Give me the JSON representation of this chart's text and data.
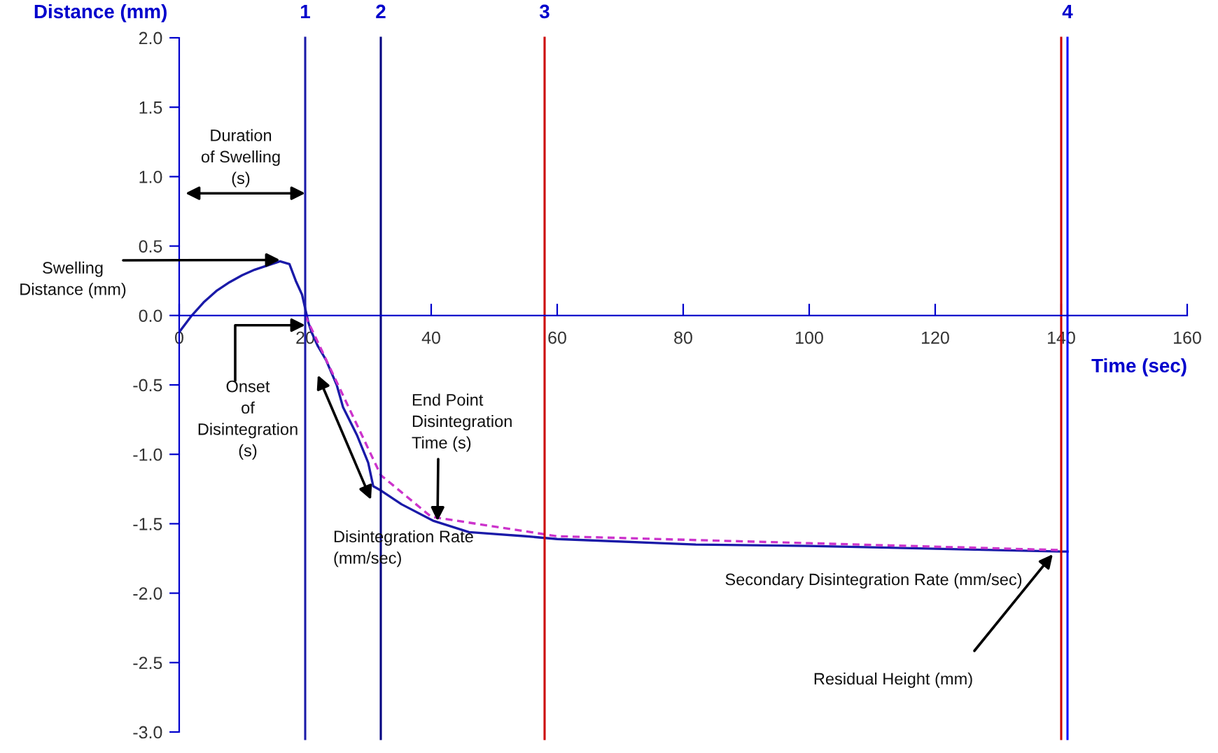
{
  "chart_data": {
    "type": "line",
    "xlabel": "Time (sec)",
    "ylabel": "Distance (mm)",
    "xlim": [
      0,
      160
    ],
    "ylim": [
      -3.0,
      2.0
    ],
    "xticks": [
      0,
      20,
      40,
      60,
      80,
      100,
      120,
      140,
      160
    ],
    "yticks": [
      {
        "value": -3.0,
        "label": "-3.0"
      },
      {
        "value": -2.5,
        "label": "-2.5"
      },
      {
        "value": -2.0,
        "label": "-2.0"
      },
      {
        "value": -1.5,
        "label": "-1.5"
      },
      {
        "value": -1.0,
        "label": "-1.0"
      },
      {
        "value": -0.5,
        "label": "-0.5"
      },
      {
        "value": 0.0,
        "label": "0.0"
      },
      {
        "value": 0.5,
        "label": "0.5"
      },
      {
        "value": 1.0,
        "label": "1.0"
      },
      {
        "value": 1.5,
        "label": "1.5"
      },
      {
        "value": 2.0,
        "label": "2.0"
      }
    ],
    "grid": false,
    "legend": false,
    "series": [
      {
        "color": "#1a1aa8",
        "line_style": "solid",
        "x": [
          0,
          2,
          4,
          6,
          8,
          10,
          12,
          14,
          16,
          17.5,
          18.5,
          19.5,
          20,
          20.5,
          21,
          22,
          23.3,
          25,
          26,
          28.2,
          30,
          30.8,
          32,
          35.3,
          40.4,
          46,
          55,
          60,
          82,
          100,
          120,
          140,
          141
        ],
        "values": [
          -0.12,
          0.0,
          0.1,
          0.18,
          0.24,
          0.29,
          0.33,
          0.36,
          0.39,
          0.37,
          0.25,
          0.15,
          0.05,
          -0.05,
          -0.12,
          -0.22,
          -0.32,
          -0.5,
          -0.66,
          -0.86,
          -1.06,
          -1.23,
          -1.26,
          -1.36,
          -1.48,
          -1.56,
          -1.59,
          -1.61,
          -1.65,
          -1.66,
          -1.68,
          -1.7,
          -1.7
        ]
      },
      {
        "color": "#cc33cc",
        "line_style": "dashed",
        "x": [
          20,
          32,
          40,
          60,
          100,
          140
        ],
        "values": [
          0.0,
          -1.15,
          -1.45,
          -1.59,
          -1.64,
          -1.69
        ]
      }
    ],
    "ref_lines": [
      {
        "axis": "x",
        "value": 20,
        "color": "#1a1aa8"
      },
      {
        "axis": "x",
        "value": 32,
        "color": "#000080"
      },
      {
        "axis": "x",
        "value": 58,
        "color": "#cc0000"
      },
      {
        "axis": "x",
        "value": 140,
        "color": "#cc0000"
      },
      {
        "axis": "x",
        "value": 141,
        "color": "#0000ff"
      }
    ],
    "annotations": [
      {
        "text": "Duration\nof Swelling\n(s)",
        "x": 20,
        "y": 0.88
      },
      {
        "text": "Swelling\nDistance (mm)",
        "x": 16,
        "y": 0.4
      },
      {
        "text": "Onset\nof\nDisintegration\n(s)",
        "x": 20,
        "y": -0.07
      },
      "Disintegration Rate\n(mm/sec)",
      {
        "text": "End Point\nDisintegration\nTime (s)",
        "x": 41,
        "y": -1.48
      },
      "Secondary Disintegration Rate (mm/sec)",
      "Residual Height (mm)",
      {
        "text": "1",
        "x": 20,
        "y": 2.0
      },
      {
        "text": "2",
        "x": 32,
        "y": 2.0
      },
      {
        "text": "3",
        "x": 58,
        "y": 2.0
      },
      {
        "text": "4",
        "x": 141,
        "y": 2.0
      }
    ]
  }
}
